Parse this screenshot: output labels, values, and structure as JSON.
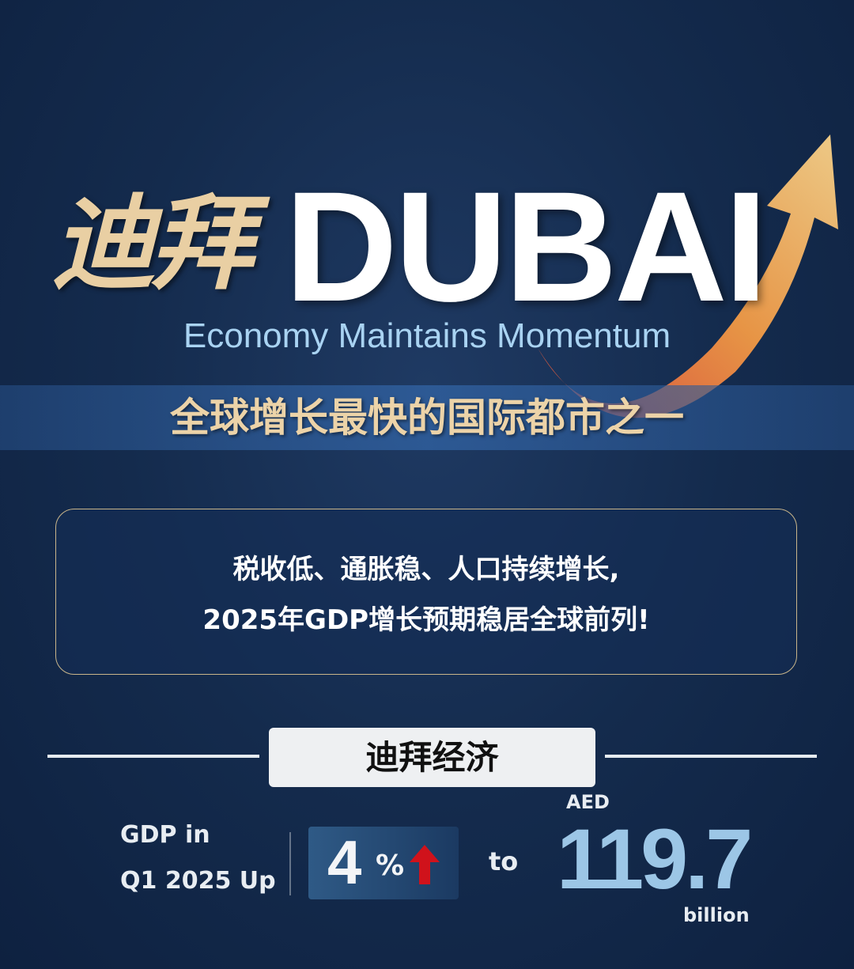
{
  "header": {
    "title_cn": "迪拜",
    "title_en": "DUBAI",
    "subtitle": "Economy Maintains Momentum",
    "banner": "全球增长最快的国际都市之一"
  },
  "info": {
    "line1": "税收低、通胀稳、人口持续增长,",
    "line2": "2025年GDP增长预期稳居全球前列!"
  },
  "section": {
    "title": "迪拜经济",
    "gdp_label_1": "GDP in",
    "gdp_label_2": "Q1 2025 Up",
    "growth_value": "4",
    "growth_unit": "%",
    "to": "to",
    "currency": "AED",
    "gdp_value": "119.7",
    "gdp_unit": "billion"
  },
  "colors": {
    "background": "#142b4d",
    "gold": "#e9cfa3",
    "accent_blue": "#a9d3f2",
    "up_arrow": "#d0121b",
    "growth_arrow": "#f2a040"
  }
}
